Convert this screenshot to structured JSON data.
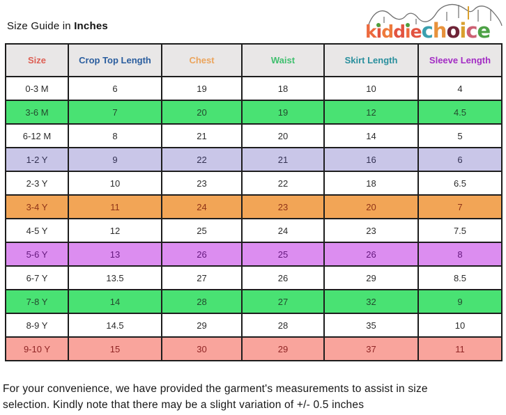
{
  "header": {
    "title_prefix": "Size Guide in ",
    "title_bold": "Inches"
  },
  "logo": {
    "name": "kiddiechoice",
    "letters": [
      {
        "ch": "k",
        "color": "#ed6a3e"
      },
      {
        "ch": "i",
        "color": "#e25340",
        "dot": true
      },
      {
        "ch": "d",
        "color": "#ee7a3c"
      },
      {
        "ch": "d",
        "color": "#e25340"
      },
      {
        "ch": "i",
        "color": "#ed6a3e",
        "dot": true
      },
      {
        "ch": "e",
        "color": "#e25340"
      },
      {
        "ch": "c",
        "color": "#3a9fae",
        "size": "big"
      },
      {
        "ch": "h",
        "color": "#e8923c",
        "size": "big"
      },
      {
        "ch": "o",
        "color": "#6e2437",
        "size": "big"
      },
      {
        "ch": "i",
        "color": "#d9a02e",
        "size": "big"
      },
      {
        "ch": "c",
        "color": "#cc6073",
        "size": "big"
      },
      {
        "ch": "e",
        "color": "#4da146",
        "size": "big"
      }
    ]
  },
  "chart_data": {
    "type": "table",
    "title": "Size Guide in Inches",
    "header_bg": "#e9e7e7",
    "columns": [
      {
        "label": "Size",
        "color": "#dd5f54"
      },
      {
        "label": "Crop Top Length",
        "color": "#2a5d9e"
      },
      {
        "label": "Chest",
        "color": "#eba45c"
      },
      {
        "label": "Waist",
        "color": "#3fbf6e"
      },
      {
        "label": "Skirt Length",
        "color": "#2a8f9d"
      },
      {
        "label": "Sleeve Length",
        "color": "#a32cc4"
      }
    ],
    "rows": [
      {
        "cells": [
          "0-3 M",
          "6",
          "19",
          "18",
          "10",
          "4"
        ],
        "bg": "#ffffff",
        "fg": "#2b2b2b"
      },
      {
        "cells": [
          "3-6 M",
          "7",
          "20",
          "19",
          "12",
          "4.5"
        ],
        "bg": "#49e273",
        "fg": "#234a2e"
      },
      {
        "cells": [
          "6-12 M",
          "8",
          "21",
          "20",
          "14",
          "5"
        ],
        "bg": "#ffffff",
        "fg": "#2b2b2b"
      },
      {
        "cells": [
          "1-2 Y",
          "9",
          "22",
          "21",
          "16",
          "6"
        ],
        "bg": "#c9c6e8",
        "fg": "#333152"
      },
      {
        "cells": [
          "2-3 Y",
          "10",
          "23",
          "22",
          "18",
          "6.5"
        ],
        "bg": "#ffffff",
        "fg": "#2b2b2b"
      },
      {
        "cells": [
          "3-4 Y",
          "11",
          "24",
          "23",
          "20",
          "7"
        ],
        "bg": "#f2a556",
        "fg": "#8f3318"
      },
      {
        "cells": [
          "4-5 Y",
          "12",
          "25",
          "24",
          "23",
          "7.5"
        ],
        "bg": "#ffffff",
        "fg": "#2b2b2b"
      },
      {
        "cells": [
          "5-6 Y",
          "13",
          "26",
          "25",
          "26",
          "8"
        ],
        "bg": "#dc8df0",
        "fg": "#64187d"
      },
      {
        "cells": [
          "6-7 Y",
          "13.5",
          "27",
          "26",
          "29",
          "8.5"
        ],
        "bg": "#ffffff",
        "fg": "#2b2b2b"
      },
      {
        "cells": [
          "7-8 Y",
          "14",
          "28",
          "27",
          "32",
          "9"
        ],
        "bg": "#49e273",
        "fg": "#234a2e"
      },
      {
        "cells": [
          "8-9 Y",
          "14.5",
          "29",
          "28",
          "35",
          "10"
        ],
        "bg": "#ffffff",
        "fg": "#2b2b2b"
      },
      {
        "cells": [
          "9-10 Y",
          "15",
          "30",
          "29",
          "37",
          "11"
        ],
        "bg": "#f9a49c",
        "fg": "#8f2525"
      }
    ]
  },
  "footer": {
    "line1": "For your convenience, we have provided the garment's measurements to assist in size",
    "line2": "selection. Kindly note that there may be a slight variation of +/- 0.5 inches"
  }
}
